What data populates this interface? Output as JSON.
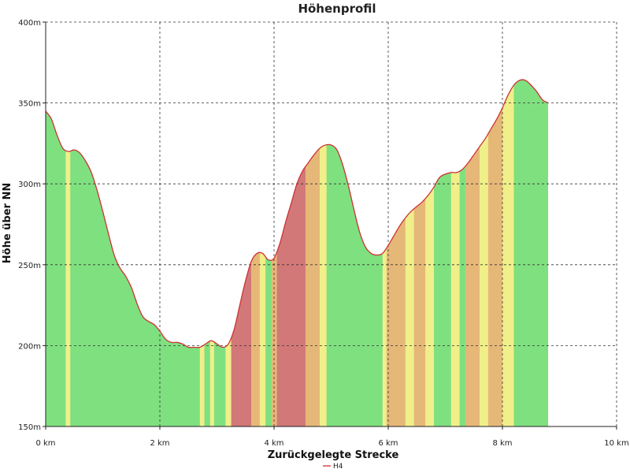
{
  "chart_data": {
    "type": "area",
    "title": "Höhenprofil",
    "xlabel": "Zurückgelegte Strecke",
    "ylabel": "Höhe über NN",
    "xlim": [
      0,
      10
    ],
    "ylim": [
      150,
      400
    ],
    "x_ticks": [
      {
        "value": 0,
        "label": "0 km"
      },
      {
        "value": 2,
        "label": "2 km"
      },
      {
        "value": 4,
        "label": "4 km"
      },
      {
        "value": 6,
        "label": "6 km"
      },
      {
        "value": 8,
        "label": "8 km"
      },
      {
        "value": 10,
        "label": "10 km"
      }
    ],
    "y_ticks": [
      {
        "value": 150,
        "label": "150m"
      },
      {
        "value": 200,
        "label": "200m"
      },
      {
        "value": 250,
        "label": "250m"
      },
      {
        "value": 300,
        "label": "300m"
      },
      {
        "value": 350,
        "label": "350m"
      },
      {
        "value": 400,
        "label": "400m"
      }
    ],
    "grid": true,
    "legend_position": "bottom-center",
    "series": [
      {
        "name": "H4",
        "color": "#cc3333",
        "x": [
          0,
          0.1,
          0.2,
          0.3,
          0.4,
          0.5,
          0.6,
          0.7,
          0.8,
          0.9,
          1.0,
          1.1,
          1.2,
          1.3,
          1.4,
          1.5,
          1.6,
          1.7,
          1.8,
          1.9,
          2.0,
          2.1,
          2.2,
          2.3,
          2.4,
          2.5,
          2.6,
          2.7,
          2.8,
          2.9,
          3.0,
          3.1,
          3.2,
          3.3,
          3.4,
          3.5,
          3.6,
          3.7,
          3.8,
          3.9,
          4.0,
          4.1,
          4.2,
          4.3,
          4.4,
          4.5,
          4.6,
          4.7,
          4.8,
          4.9,
          5.0,
          5.1,
          5.2,
          5.3,
          5.4,
          5.5,
          5.6,
          5.7,
          5.8,
          5.9,
          6.0,
          6.1,
          6.2,
          6.3,
          6.4,
          6.5,
          6.6,
          6.7,
          6.8,
          6.9,
          7.0,
          7.1,
          7.2,
          7.3,
          7.4,
          7.5,
          7.6,
          7.7,
          7.8,
          7.9,
          8.0,
          8.1,
          8.2,
          8.3,
          8.4,
          8.5,
          8.6,
          8.7,
          8.8
        ],
        "values": [
          345,
          340,
          330,
          322,
          320,
          321,
          319,
          314,
          307,
          296,
          283,
          269,
          256,
          248,
          243,
          236,
          226,
          218,
          215,
          213,
          209,
          204,
          202,
          202,
          201,
          199,
          199,
          199,
          201,
          203,
          201,
          199,
          201,
          210,
          225,
          240,
          252,
          257,
          257,
          253,
          254,
          263,
          276,
          288,
          300,
          308,
          313,
          318,
          322,
          324,
          324,
          321,
          312,
          299,
          284,
          270,
          261,
          257,
          256,
          257,
          262,
          268,
          274,
          279,
          283,
          286,
          289,
          293,
          298,
          304,
          306,
          307,
          307,
          309,
          313,
          318,
          323,
          328,
          334,
          340,
          347,
          355,
          361,
          364,
          364,
          361,
          357,
          352,
          350
        ]
      }
    ],
    "fill_palette": {
      "green": "#7fe07f",
      "yellow": "#f0ef8a",
      "orange": "#e6b878",
      "red": "#d27878"
    },
    "color_bands": [
      {
        "from": 0,
        "to": 0.35,
        "color": "green"
      },
      {
        "from": 0.35,
        "to": 0.43,
        "color": "yellow"
      },
      {
        "from": 0.43,
        "to": 2.7,
        "color": "green"
      },
      {
        "from": 2.7,
        "to": 2.78,
        "color": "yellow"
      },
      {
        "from": 2.78,
        "to": 2.88,
        "color": "green"
      },
      {
        "from": 2.88,
        "to": 2.95,
        "color": "yellow"
      },
      {
        "from": 2.95,
        "to": 3.15,
        "color": "green"
      },
      {
        "from": 3.15,
        "to": 3.25,
        "color": "yellow"
      },
      {
        "from": 3.25,
        "to": 3.6,
        "color": "red"
      },
      {
        "from": 3.6,
        "to": 3.75,
        "color": "orange"
      },
      {
        "from": 3.75,
        "to": 3.85,
        "color": "yellow"
      },
      {
        "from": 3.85,
        "to": 3.95,
        "color": "green"
      },
      {
        "from": 3.95,
        "to": 4.05,
        "color": "orange"
      },
      {
        "from": 4.05,
        "to": 4.55,
        "color": "red"
      },
      {
        "from": 4.55,
        "to": 4.8,
        "color": "orange"
      },
      {
        "from": 4.8,
        "to": 4.92,
        "color": "yellow"
      },
      {
        "from": 4.92,
        "to": 5.9,
        "color": "green"
      },
      {
        "from": 5.9,
        "to": 5.97,
        "color": "yellow"
      },
      {
        "from": 5.97,
        "to": 6.3,
        "color": "orange"
      },
      {
        "from": 6.3,
        "to": 6.45,
        "color": "yellow"
      },
      {
        "from": 6.45,
        "to": 6.65,
        "color": "orange"
      },
      {
        "from": 6.65,
        "to": 6.8,
        "color": "yellow"
      },
      {
        "from": 6.8,
        "to": 7.1,
        "color": "green"
      },
      {
        "from": 7.1,
        "to": 7.25,
        "color": "yellow"
      },
      {
        "from": 7.25,
        "to": 7.35,
        "color": "green"
      },
      {
        "from": 7.35,
        "to": 7.6,
        "color": "orange"
      },
      {
        "from": 7.6,
        "to": 7.75,
        "color": "yellow"
      },
      {
        "from": 7.75,
        "to": 8.0,
        "color": "orange"
      },
      {
        "from": 8.0,
        "to": 8.2,
        "color": "yellow"
      },
      {
        "from": 8.2,
        "to": 8.8,
        "color": "green"
      }
    ]
  }
}
